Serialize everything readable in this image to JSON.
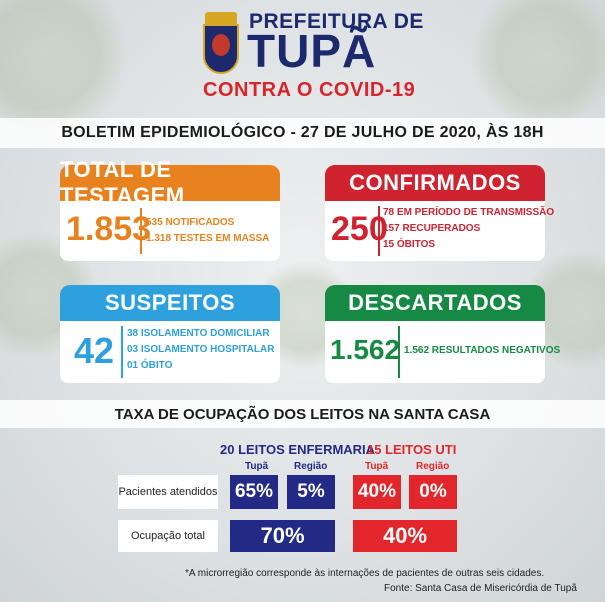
{
  "header": {
    "prefeitura": "PREFEITURA DE",
    "city": "TUPÃ",
    "campaign": "CONTRA O COVID-19"
  },
  "bulletin": "BOLETIM EPIDEMIOLÓGICO - 27 DE JULHO DE 2020, ÀS 18H",
  "cards": {
    "testagem": {
      "title": "TOTAL DE TESTAGEM",
      "value": "1.853",
      "lines": [
        "535 NOTIFICADOS",
        "1.318 TESTES EM MASSA"
      ],
      "color": "#e8821e"
    },
    "confirmados": {
      "title": "CONFIRMADOS",
      "value": "250",
      "lines": [
        "78 EM PERÍODO DE TRANSMISSÃO",
        "157 RECUPERADOS",
        "15 ÓBITOS"
      ],
      "color": "#cf2330"
    },
    "suspeitos": {
      "title": "SUSPEITOS",
      "value": "42",
      "lines": [
        "38 ISOLAMENTO DOMICILIAR",
        "03 ISOLAMENTO HOSPITALAR",
        "01 ÓBITO"
      ],
      "color": "#2da0dd"
    },
    "descartados": {
      "title": "DESCARTADOS",
      "value": "1.562",
      "lines": [
        "1.562 RESULTADOS NEGATIVOS"
      ],
      "color": "#168a45"
    }
  },
  "occupancy": {
    "title": "TAXA DE OCUPAÇÃO DOS LEITOS NA SANTA CASA",
    "enfermaria": {
      "label": "20 LEITOS ENFERMARIA",
      "tupa": "Tupã",
      "regiao": "Região",
      "pac_tupa": "65%",
      "pac_regiao": "5%",
      "total": "70%",
      "color": "#232a85"
    },
    "uti": {
      "label": "15 LEITOS UTI",
      "tupa": "Tupã",
      "regiao": "Região",
      "pac_tupa": "40%",
      "pac_regiao": "0%",
      "total": "40%",
      "color": "#e2262b"
    },
    "row_pacientes": "Pacientes atendidos",
    "row_total": "Ocupação total"
  },
  "footnote": "*A microrregião corresponde às internações de pacientes de outras seis cidades.",
  "source": "Fonte: Santa Casa de Misericórdia de Tupã"
}
